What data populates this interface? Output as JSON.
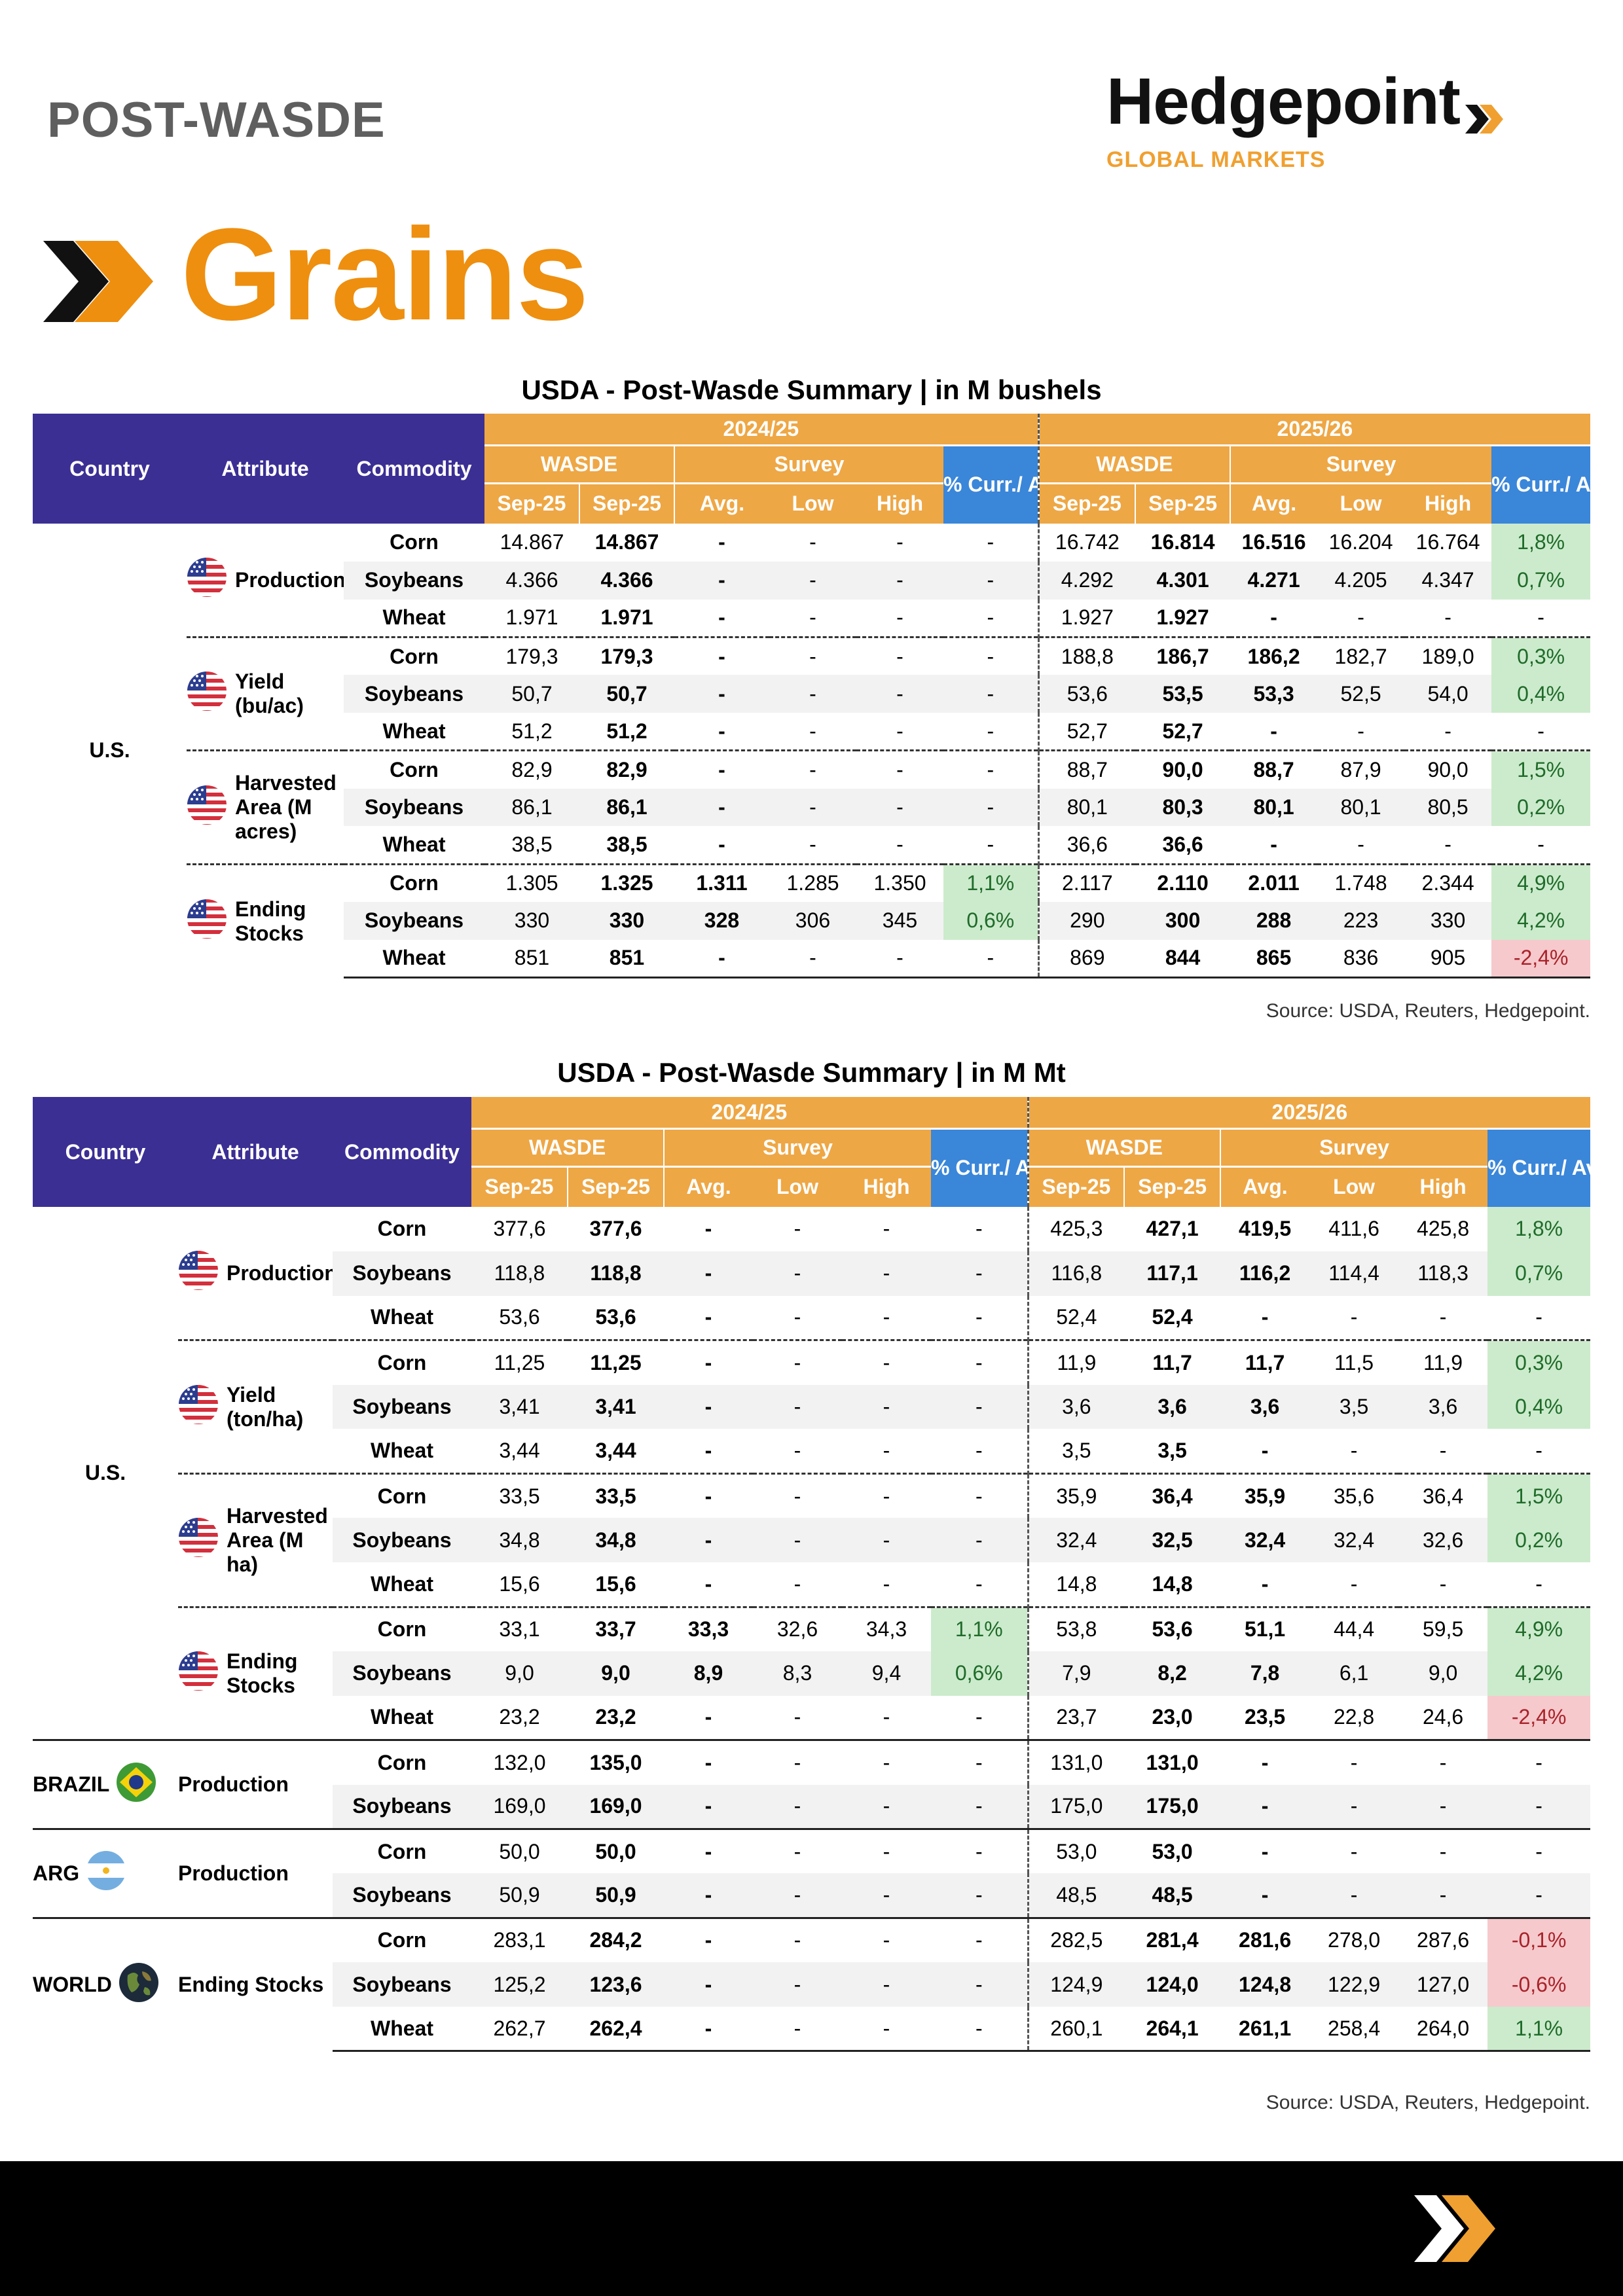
{
  "header": {
    "label": "POST-WASDE",
    "logo_name": "Hedgepoint",
    "logo_sub": "GLOBAL MARKETS",
    "section_title": "Grains"
  },
  "colors": {
    "header_purple": "#3b2f94",
    "header_orange": "#eea745",
    "header_blue": "#3a86d9",
    "brand_orange": "#ee8f0f",
    "positive_bg": "#ccebcc",
    "negative_bg": "#f6c9cc"
  },
  "icons": [
    "us-flag-icon",
    "brazil-flag-icon",
    "argentina-flag-icon",
    "globe-icon",
    "chevron-logo-icon"
  ],
  "table1": {
    "title": "USDA - Post-Wasde Summary | in M bushels",
    "headers": {
      "country": "Country",
      "attribute": "Attribute",
      "commodity": "Commodity",
      "year1": "2024/25",
      "year2": "2025/26",
      "wasde": "WASDE",
      "survey": "Survey",
      "pct": "% Curr./ Avg.",
      "sub": [
        "Sep-25",
        "Sep-25",
        "Avg.",
        "Low",
        "High"
      ]
    },
    "source": "Source: USDA, Reuters, Hedgepoint.",
    "country": "U.S.",
    "groups": [
      {
        "attribute": "Production",
        "rows": [
          {
            "commodity": "Corn",
            "y1": [
              "14.867",
              "14.867",
              "-",
              "-",
              "-",
              "-"
            ],
            "y2": [
              "16.742",
              "16.814",
              "16.516",
              "16.204",
              "16.764",
              "1,8%"
            ]
          },
          {
            "commodity": "Soybeans",
            "y1": [
              "4.366",
              "4.366",
              "-",
              "-",
              "-",
              "-"
            ],
            "y2": [
              "4.292",
              "4.301",
              "4.271",
              "4.205",
              "4.347",
              "0,7%"
            ]
          },
          {
            "commodity": "Wheat",
            "y1": [
              "1.971",
              "1.971",
              "-",
              "-",
              "-",
              "-"
            ],
            "y2": [
              "1.927",
              "1.927",
              "-",
              "-",
              "-",
              "-"
            ]
          }
        ]
      },
      {
        "attribute": "Yield (bu/ac)",
        "rows": [
          {
            "commodity": "Corn",
            "y1": [
              "179,3",
              "179,3",
              "-",
              "-",
              "-",
              "-"
            ],
            "y2": [
              "188,8",
              "186,7",
              "186,2",
              "182,7",
              "189,0",
              "0,3%"
            ]
          },
          {
            "commodity": "Soybeans",
            "y1": [
              "50,7",
              "50,7",
              "-",
              "-",
              "-",
              "-"
            ],
            "y2": [
              "53,6",
              "53,5",
              "53,3",
              "52,5",
              "54,0",
              "0,4%"
            ]
          },
          {
            "commodity": "Wheat",
            "y1": [
              "51,2",
              "51,2",
              "-",
              "-",
              "-",
              "-"
            ],
            "y2": [
              "52,7",
              "52,7",
              "-",
              "-",
              "-",
              "-"
            ]
          }
        ]
      },
      {
        "attribute": "Harvested Area (M acres)",
        "rows": [
          {
            "commodity": "Corn",
            "y1": [
              "82,9",
              "82,9",
              "-",
              "-",
              "-",
              "-"
            ],
            "y2": [
              "88,7",
              "90,0",
              "88,7",
              "87,9",
              "90,0",
              "1,5%"
            ]
          },
          {
            "commodity": "Soybeans",
            "y1": [
              "86,1",
              "86,1",
              "-",
              "-",
              "-",
              "-"
            ],
            "y2": [
              "80,1",
              "80,3",
              "80,1",
              "80,1",
              "80,5",
              "0,2%"
            ]
          },
          {
            "commodity": "Wheat",
            "y1": [
              "38,5",
              "38,5",
              "-",
              "-",
              "-",
              "-"
            ],
            "y2": [
              "36,6",
              "36,6",
              "-",
              "-",
              "-",
              "-"
            ]
          }
        ]
      },
      {
        "attribute": "Ending Stocks",
        "rows": [
          {
            "commodity": "Corn",
            "y1": [
              "1.305",
              "1.325",
              "1.311",
              "1.285",
              "1.350",
              "1,1%"
            ],
            "y2": [
              "2.117",
              "2.110",
              "2.011",
              "1.748",
              "2.344",
              "4,9%"
            ]
          },
          {
            "commodity": "Soybeans",
            "y1": [
              "330",
              "330",
              "328",
              "306",
              "345",
              "0,6%"
            ],
            "y2": [
              "290",
              "300",
              "288",
              "223",
              "330",
              "4,2%"
            ]
          },
          {
            "commodity": "Wheat",
            "y1": [
              "851",
              "851",
              "-",
              "-",
              "-",
              "-"
            ],
            "y2": [
              "869",
              "844",
              "865",
              "836",
              "905",
              "-2,4%"
            ]
          }
        ]
      }
    ]
  },
  "table2": {
    "title": "USDA - Post-Wasde Summary | in M Mt",
    "headers": {
      "country": "Country",
      "attribute": "Attribute",
      "commodity": "Commodity",
      "year1": "2024/25",
      "year2": "2025/26",
      "wasde": "WASDE",
      "survey": "Survey",
      "pct": "% Curr./ Avg.",
      "sub": [
        "Sep-25",
        "Sep-25",
        "Avg.",
        "Low",
        "High"
      ]
    },
    "source": "Source: USDA, Reuters, Hedgepoint.",
    "blocks": [
      {
        "country": "U.S.",
        "groups": [
          {
            "attribute": "Production",
            "rows": [
              {
                "commodity": "Corn",
                "y1": [
                  "377,6",
                  "377,6",
                  "-",
                  "-",
                  "-",
                  "-"
                ],
                "y2": [
                  "425,3",
                  "427,1",
                  "419,5",
                  "411,6",
                  "425,8",
                  "1,8%"
                ]
              },
              {
                "commodity": "Soybeans",
                "y1": [
                  "118,8",
                  "118,8",
                  "-",
                  "-",
                  "-",
                  "-"
                ],
                "y2": [
                  "116,8",
                  "117,1",
                  "116,2",
                  "114,4",
                  "118,3",
                  "0,7%"
                ]
              },
              {
                "commodity": "Wheat",
                "y1": [
                  "53,6",
                  "53,6",
                  "-",
                  "-",
                  "-",
                  "-"
                ],
                "y2": [
                  "52,4",
                  "52,4",
                  "-",
                  "-",
                  "-",
                  "-"
                ]
              }
            ]
          },
          {
            "attribute": "Yield (ton/ha)",
            "rows": [
              {
                "commodity": "Corn",
                "y1": [
                  "11,25",
                  "11,25",
                  "-",
                  "-",
                  "-",
                  "-"
                ],
                "y2": [
                  "11,9",
                  "11,7",
                  "11,7",
                  "11,5",
                  "11,9",
                  "0,3%"
                ]
              },
              {
                "commodity": "Soybeans",
                "y1": [
                  "3,41",
                  "3,41",
                  "-",
                  "-",
                  "-",
                  "-"
                ],
                "y2": [
                  "3,6",
                  "3,6",
                  "3,6",
                  "3,5",
                  "3,6",
                  "0,4%"
                ]
              },
              {
                "commodity": "Wheat",
                "y1": [
                  "3,44",
                  "3,44",
                  "-",
                  "-",
                  "-",
                  "-"
                ],
                "y2": [
                  "3,5",
                  "3,5",
                  "-",
                  "-",
                  "-",
                  "-"
                ]
              }
            ]
          },
          {
            "attribute": "Harvested Area (M ha)",
            "rows": [
              {
                "commodity": "Corn",
                "y1": [
                  "33,5",
                  "33,5",
                  "-",
                  "-",
                  "-",
                  "-"
                ],
                "y2": [
                  "35,9",
                  "36,4",
                  "35,9",
                  "35,6",
                  "36,4",
                  "1,5%"
                ]
              },
              {
                "commodity": "Soybeans",
                "y1": [
                  "34,8",
                  "34,8",
                  "-",
                  "-",
                  "-",
                  "-"
                ],
                "y2": [
                  "32,4",
                  "32,5",
                  "32,4",
                  "32,4",
                  "32,6",
                  "0,2%"
                ]
              },
              {
                "commodity": "Wheat",
                "y1": [
                  "15,6",
                  "15,6",
                  "-",
                  "-",
                  "-",
                  "-"
                ],
                "y2": [
                  "14,8",
                  "14,8",
                  "-",
                  "-",
                  "-",
                  "-"
                ]
              }
            ]
          },
          {
            "attribute": "Ending Stocks",
            "rows": [
              {
                "commodity": "Corn",
                "y1": [
                  "33,1",
                  "33,7",
                  "33,3",
                  "32,6",
                  "34,3",
                  "1,1%"
                ],
                "y2": [
                  "53,8",
                  "53,6",
                  "51,1",
                  "44,4",
                  "59,5",
                  "4,9%"
                ]
              },
              {
                "commodity": "Soybeans",
                "y1": [
                  "9,0",
                  "9,0",
                  "8,9",
                  "8,3",
                  "9,4",
                  "0,6%"
                ],
                "y2": [
                  "7,9",
                  "8,2",
                  "7,8",
                  "6,1",
                  "9,0",
                  "4,2%"
                ]
              },
              {
                "commodity": "Wheat",
                "y1": [
                  "23,2",
                  "23,2",
                  "-",
                  "-",
                  "-",
                  "-"
                ],
                "y2": [
                  "23,7",
                  "23,0",
                  "23,5",
                  "22,8",
                  "24,6",
                  "-2,4%"
                ]
              }
            ]
          }
        ]
      },
      {
        "country": "BRAZIL",
        "groups": [
          {
            "attribute": "Production",
            "rows": [
              {
                "commodity": "Corn",
                "y1": [
                  "132,0",
                  "135,0",
                  "-",
                  "-",
                  "-",
                  "-"
                ],
                "y2": [
                  "131,0",
                  "131,0",
                  "-",
                  "-",
                  "-",
                  "-"
                ]
              },
              {
                "commodity": "Soybeans",
                "y1": [
                  "169,0",
                  "169,0",
                  "-",
                  "-",
                  "-",
                  "-"
                ],
                "y2": [
                  "175,0",
                  "175,0",
                  "-",
                  "-",
                  "-",
                  "-"
                ]
              }
            ]
          }
        ]
      },
      {
        "country": "ARG",
        "groups": [
          {
            "attribute": "Production",
            "rows": [
              {
                "commodity": "Corn",
                "y1": [
                  "50,0",
                  "50,0",
                  "-",
                  "-",
                  "-",
                  "-"
                ],
                "y2": [
                  "53,0",
                  "53,0",
                  "-",
                  "-",
                  "-",
                  "-"
                ]
              },
              {
                "commodity": "Soybeans",
                "y1": [
                  "50,9",
                  "50,9",
                  "-",
                  "-",
                  "-",
                  "-"
                ],
                "y2": [
                  "48,5",
                  "48,5",
                  "-",
                  "-",
                  "-",
                  "-"
                ]
              }
            ]
          }
        ]
      },
      {
        "country": "WORLD",
        "groups": [
          {
            "attribute": "Ending Stocks",
            "rows": [
              {
                "commodity": "Corn",
                "y1": [
                  "283,1",
                  "284,2",
                  "-",
                  "-",
                  "-",
                  "-"
                ],
                "y2": [
                  "282,5",
                  "281,4",
                  "281,6",
                  "278,0",
                  "287,6",
                  "-0,1%"
                ]
              },
              {
                "commodity": "Soybeans",
                "y1": [
                  "125,2",
                  "123,6",
                  "-",
                  "-",
                  "-",
                  "-"
                ],
                "y2": [
                  "124,9",
                  "124,0",
                  "124,8",
                  "122,9",
                  "127,0",
                  "-0,6%"
                ]
              },
              {
                "commodity": "Wheat",
                "y1": [
                  "262,7",
                  "262,4",
                  "-",
                  "-",
                  "-",
                  "-"
                ],
                "y2": [
                  "260,1",
                  "264,1",
                  "261,1",
                  "258,4",
                  "264,0",
                  "1,1%"
                ]
              }
            ]
          }
        ]
      }
    ]
  }
}
